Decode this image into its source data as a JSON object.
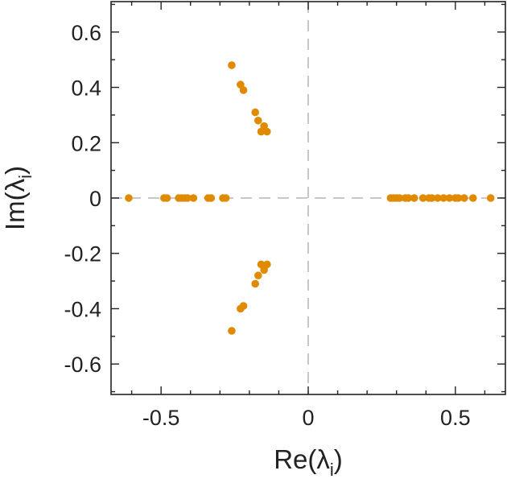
{
  "chart_data": {
    "type": "scatter",
    "xlabel": {
      "base": "Re(λ",
      "sub": "i",
      "close": ")"
    },
    "ylabel": {
      "base": "Im(λ",
      "sub": "i",
      "close": ")"
    },
    "xlim": [
      -0.67,
      0.67
    ],
    "ylim": [
      -0.71,
      0.71
    ],
    "xticks": [
      {
        "value": -0.5,
        "label": "-0.5"
      },
      {
        "value": 0,
        "label": "0"
      },
      {
        "value": 0.5,
        "label": "0.5"
      }
    ],
    "yticks": [
      {
        "value": 0.6,
        "label": "0.6"
      },
      {
        "value": 0.4,
        "label": "0.4"
      },
      {
        "value": 0.2,
        "label": "0.2"
      },
      {
        "value": 0,
        "label": "0"
      },
      {
        "value": -0.2,
        "label": "-0.2"
      },
      {
        "value": -0.4,
        "label": "-0.4"
      },
      {
        "value": -0.6,
        "label": "-0.6"
      }
    ],
    "zero_lines": true,
    "grid": false,
    "marker_color": "#e08a00",
    "zero_line_color": "#c8c8c8",
    "points": [
      [
        -0.61,
        0
      ],
      [
        -0.49,
        0
      ],
      [
        -0.48,
        0
      ],
      [
        -0.44,
        0
      ],
      [
        -0.43,
        0
      ],
      [
        -0.42,
        0
      ],
      [
        -0.41,
        0
      ],
      [
        -0.39,
        0
      ],
      [
        -0.34,
        0
      ],
      [
        -0.33,
        0
      ],
      [
        -0.29,
        0
      ],
      [
        -0.28,
        0
      ],
      [
        0.28,
        0
      ],
      [
        0.29,
        0
      ],
      [
        0.3,
        0
      ],
      [
        0.31,
        0
      ],
      [
        0.33,
        0
      ],
      [
        0.34,
        0
      ],
      [
        0.36,
        0
      ],
      [
        0.39,
        0
      ],
      [
        0.41,
        0
      ],
      [
        0.42,
        0
      ],
      [
        0.44,
        0
      ],
      [
        0.46,
        0
      ],
      [
        0.48,
        0
      ],
      [
        0.5,
        0
      ],
      [
        0.51,
        0
      ],
      [
        0.53,
        0
      ],
      [
        0.56,
        0
      ],
      [
        0.62,
        0
      ],
      [
        -0.26,
        0.48
      ],
      [
        -0.23,
        0.41
      ],
      [
        -0.22,
        0.39
      ],
      [
        -0.18,
        0.31
      ],
      [
        -0.17,
        0.28
      ],
      [
        -0.16,
        0.24
      ],
      [
        -0.15,
        0.26
      ],
      [
        -0.14,
        0.24
      ],
      [
        -0.26,
        -0.48
      ],
      [
        -0.23,
        -0.4
      ],
      [
        -0.22,
        -0.39
      ],
      [
        -0.18,
        -0.31
      ],
      [
        -0.17,
        -0.28
      ],
      [
        -0.16,
        -0.24
      ],
      [
        -0.15,
        -0.26
      ],
      [
        -0.14,
        -0.24
      ]
    ]
  }
}
